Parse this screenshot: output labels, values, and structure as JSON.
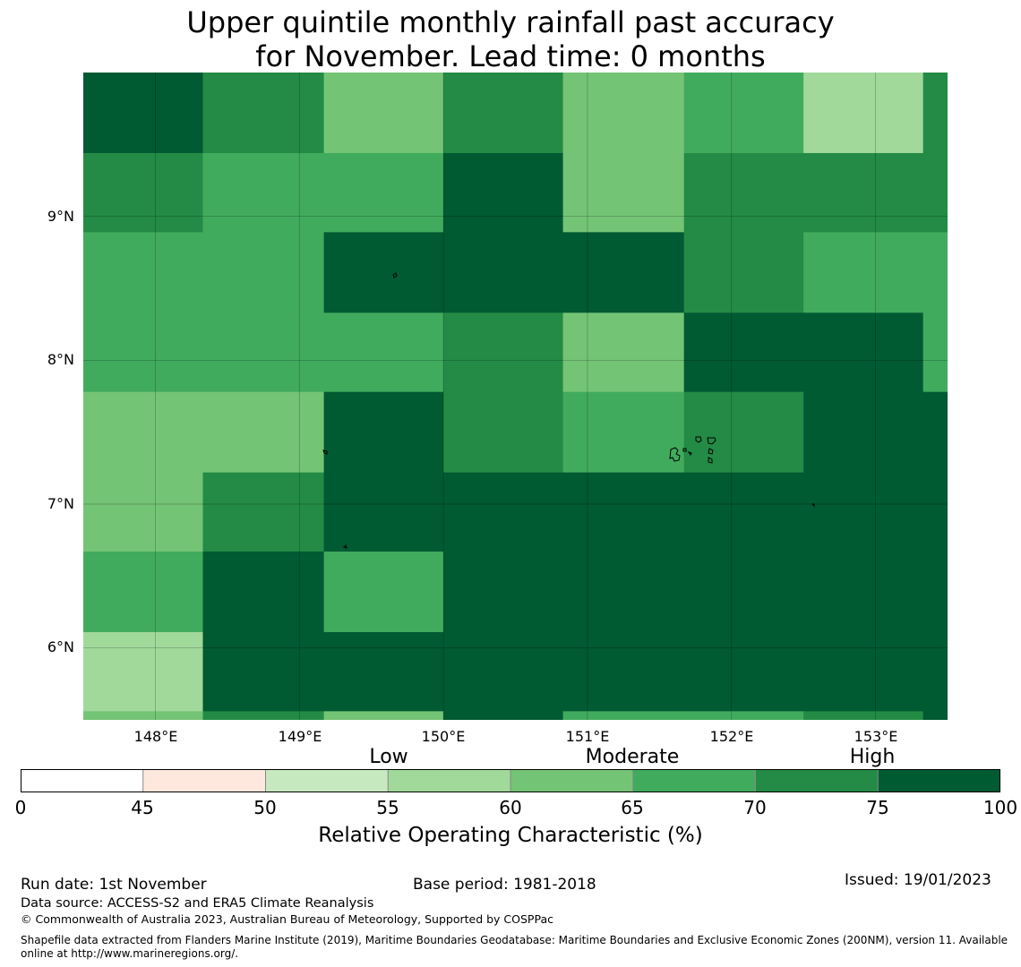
{
  "title": {
    "line1": "Upper quintile monthly rainfall past accuracy",
    "line2": "for November. Lead time: 0 months"
  },
  "map": {
    "lat_labels": [
      "9°N",
      "8°N",
      "7°N",
      "6°N"
    ],
    "lon_labels": [
      "148°E",
      "149°E",
      "150°E",
      "151°E",
      "152°E",
      "153°E"
    ],
    "lat_range": [
      5.5,
      10.0
    ],
    "lon_range": [
      147.5,
      153.5
    ],
    "grid_lats": [
      9,
      8,
      7,
      6
    ],
    "grid_lons": [
      148,
      149,
      150,
      151,
      152,
      153
    ],
    "cell_lon_edges": [
      147.5,
      148.33,
      149.17,
      150.0,
      150.83,
      151.67,
      152.5,
      153.33,
      153.5
    ],
    "cell_lat_edges": [
      10.0,
      9.44,
      8.89,
      8.33,
      7.78,
      7.22,
      6.67,
      6.11,
      5.56,
      5.5
    ],
    "categories": [
      [
        7,
        6,
        4,
        6,
        4,
        5,
        3,
        6
      ],
      [
        6,
        5,
        5,
        7,
        4,
        6,
        6,
        6
      ],
      [
        5,
        5,
        7,
        7,
        7,
        6,
        5,
        5
      ],
      [
        5,
        5,
        5,
        6,
        4,
        7,
        7,
        5
      ],
      [
        4,
        4,
        7,
        6,
        5,
        6,
        7,
        7
      ],
      [
        4,
        6,
        7,
        7,
        7,
        7,
        7,
        7
      ],
      [
        5,
        7,
        5,
        7,
        7,
        7,
        7,
        7
      ],
      [
        3,
        7,
        7,
        7,
        7,
        7,
        7,
        7
      ],
      [
        4,
        6,
        4,
        7,
        5,
        5,
        6,
        7
      ]
    ]
  },
  "legend": {
    "class_labels": [
      "Low",
      "Moderate",
      "High"
    ],
    "bounds": [
      0,
      45,
      50,
      55,
      60,
      65,
      70,
      75,
      100
    ],
    "tick_labels": [
      "0",
      "45",
      "50",
      "55",
      "60",
      "65",
      "70",
      "75",
      "100"
    ],
    "colors": [
      "#ffffff",
      "#fee8dd",
      "#c7e9c0",
      "#a1d99b",
      "#74c476",
      "#41ab5d",
      "#238b45",
      "#005a32"
    ],
    "label": "Relative Operating Characteristic (%)"
  },
  "footer": {
    "run_date": "Run date: 1st November",
    "base_period": "Base period: 1981-2018",
    "issued": "Issued: 19/01/2023",
    "data_source": "Data source: ACCESS-S2 and ERA5 Climate Reanalysis",
    "copyright": "© Commonwealth of Australia 2023, Australian Bureau of Meteorology, Supported by COSPPac",
    "shapefile": "Shapefile data extracted from Flanders Marine Institute (2019), Maritime Boundaries Geodatabase: Maritime Boundaries and Exclusive Economic Zones (200NM), version 11. Available online at http://www.marineregions.org/."
  }
}
